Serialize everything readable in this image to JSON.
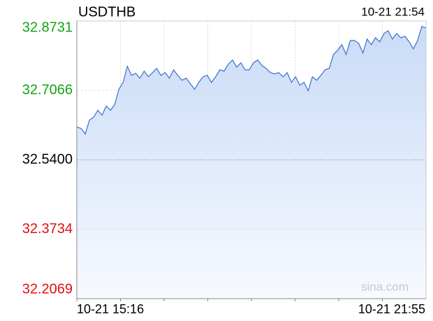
{
  "chart_data": {
    "type": "line",
    "title": "USDTHB",
    "timestamp": "10-21 21:54",
    "watermark": "sina.com",
    "categories": [
      "10-21 15:16",
      null,
      null,
      null,
      null,
      null,
      null,
      null,
      null,
      null,
      null,
      null,
      null,
      null,
      null,
      null,
      null,
      null,
      null,
      null,
      null,
      null,
      null,
      null,
      null,
      null,
      null,
      null,
      null,
      null,
      null,
      null,
      null,
      null,
      null,
      null,
      null,
      null,
      null,
      null,
      null,
      null,
      null,
      null,
      null,
      null,
      null,
      null,
      null,
      null,
      null,
      null,
      null,
      null,
      null,
      null,
      null,
      null,
      null,
      null,
      null,
      null,
      null,
      null,
      null,
      null,
      null,
      null,
      null,
      null,
      null,
      null,
      null,
      null,
      null,
      null,
      null,
      null,
      null,
      null,
      null,
      null,
      null,
      "10-21 21:55"
    ],
    "series": [
      {
        "name": "USDTHB",
        "color": "#3d6ecb",
        "values": [
          32.6187,
          32.6153,
          32.6019,
          32.6354,
          32.6421,
          32.6588,
          32.6471,
          32.6689,
          32.6588,
          32.6722,
          32.7091,
          32.7258,
          32.7643,
          32.7425,
          32.7476,
          32.7358,
          32.7526,
          32.7392,
          32.7492,
          32.7593,
          32.7425,
          32.7492,
          32.7358,
          32.7559,
          32.7425,
          32.7308,
          32.7358,
          32.7225,
          32.7091,
          32.7258,
          32.7392,
          32.7425,
          32.7258,
          32.7392,
          32.7559,
          32.7526,
          32.7693,
          32.7794,
          32.7626,
          32.7727,
          32.7559,
          32.7559,
          32.7727,
          32.7794,
          32.766,
          32.7593,
          32.7492,
          32.7459,
          32.7492,
          32.7392,
          32.7492,
          32.7258,
          32.7392,
          32.7191,
          32.7258,
          32.7057,
          32.7392,
          32.7308,
          32.7425,
          32.7559,
          32.7593,
          32.7928,
          32.8028,
          32.8162,
          32.7928,
          32.8262,
          32.8262,
          32.8195,
          32.7961,
          32.8296,
          32.8162,
          32.8329,
          32.8229,
          32.843,
          32.8497,
          32.8296,
          32.843,
          32.8329,
          32.8363,
          32.8229,
          32.8061,
          32.8262,
          32.8597,
          32.8564
        ]
      }
    ],
    "ylim": [
      32.2069,
      32.8731
    ],
    "yticks": [
      32.8731,
      32.7066,
      {
        "value": 32.54,
        "label": "32.5400"
      },
      32.3734,
      32.2069
    ],
    "ytick_colors": [
      "#13a313",
      "#13a313",
      "#000000",
      "#e01010",
      "#e01010"
    ],
    "grid": true
  }
}
